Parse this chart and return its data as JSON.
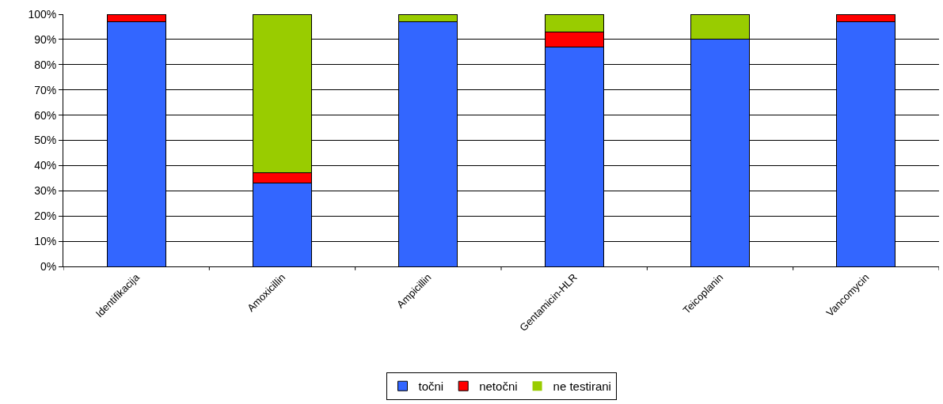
{
  "chart_data": {
    "type": "bar",
    "stacked": true,
    "categories": [
      "Identifikacija",
      "Amoxicillin",
      "Ampicillin",
      "Gentamicin-HLR",
      "Teicoplanin",
      "Vancomycin"
    ],
    "series": [
      {
        "name": "točni",
        "color": "#3366ff",
        "values": [
          97,
          33,
          97,
          87,
          90,
          97
        ]
      },
      {
        "name": "netočni",
        "color": "#ff0000",
        "values": [
          3,
          4,
          0,
          6,
          0,
          3
        ]
      },
      {
        "name": "ne testirani",
        "color": "#99cc00",
        "values": [
          0,
          63,
          3,
          7,
          10,
          0
        ]
      }
    ],
    "ylim": [
      0,
      100
    ],
    "yticks": [
      {
        "value": 0,
        "label": "0%"
      },
      {
        "value": 10,
        "label": "10%"
      },
      {
        "value": 20,
        "label": "20%"
      },
      {
        "value": 30,
        "label": "30%"
      },
      {
        "value": 40,
        "label": "40%"
      },
      {
        "value": 50,
        "label": "50%"
      },
      {
        "value": 60,
        "label": "60%"
      },
      {
        "value": 70,
        "label": "70%"
      },
      {
        "value": 80,
        "label": "80%"
      },
      {
        "value": 90,
        "label": "90%"
      },
      {
        "value": 100,
        "label": "100%"
      }
    ],
    "grid": "y",
    "legend": "bottom"
  }
}
